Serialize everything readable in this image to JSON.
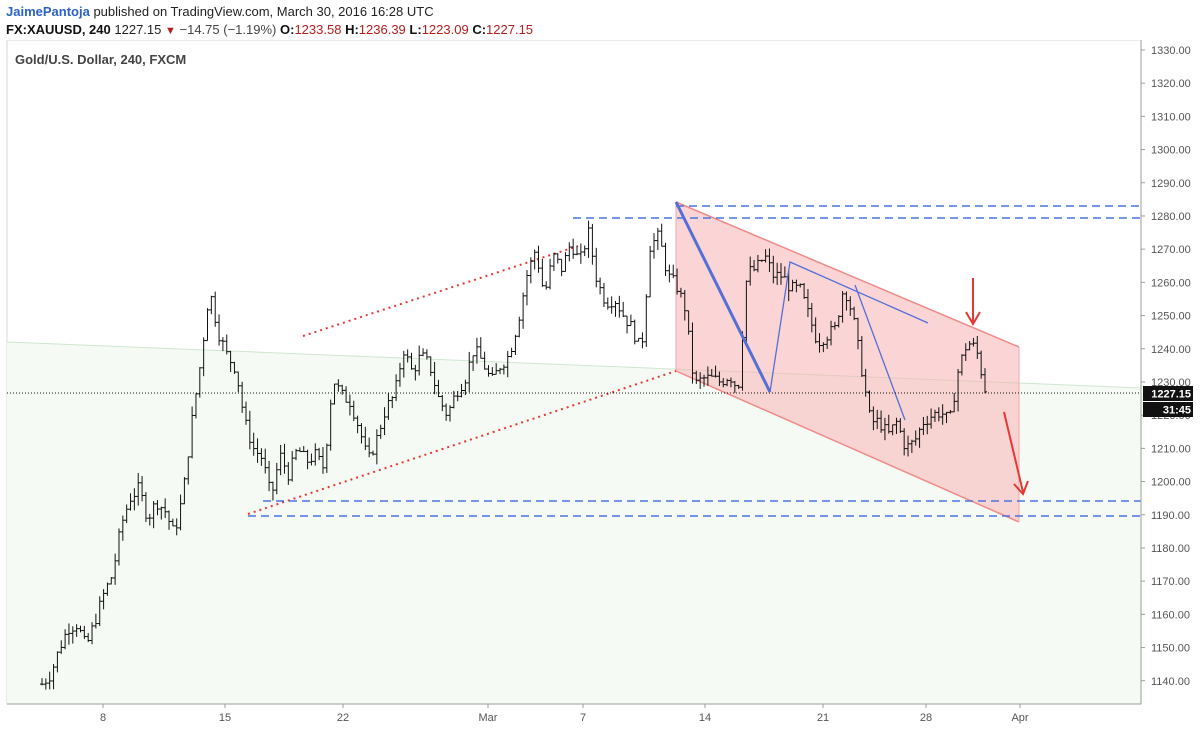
{
  "header": {
    "author": "JaimePantoja",
    "published_text": "published on TradingView.com, March 30, 2016 16:28 UTC",
    "symbol": "FX:XAUUSD, 240",
    "last_price": "1227.15",
    "change_text": "−14.75 (−1.19%)",
    "open_label": "O:",
    "open_value": "1233.58",
    "high_label": "H:",
    "high_value": "1236.39",
    "low_label": "L:",
    "low_value": "1223.09",
    "close_label": "C:",
    "close_value": "1227.15"
  },
  "chart_data": {
    "type": "candlestick",
    "title": "Gold/U.S. Dollar, 240, FXCM",
    "ylim": [
      1133,
      1333
    ],
    "y_ticks": [
      "1140.00",
      "1150.00",
      "1160.00",
      "1170.00",
      "1180.00",
      "1190.00",
      "1200.00",
      "1210.00",
      "1220.00",
      "1230.00",
      "1240.00",
      "1250.00",
      "1260.00",
      "1270.00",
      "1280.00",
      "1290.00",
      "1300.00",
      "1310.00",
      "1320.00",
      "1330.00"
    ],
    "x_ticks": [
      "8",
      "15",
      "22",
      "Mar",
      "7",
      "14",
      "21",
      "28",
      "Apr"
    ],
    "last_price_label": "1227.15",
    "countdown_label": "31:45",
    "grid": false,
    "price_path": [
      [
        0,
        1139
      ],
      [
        1,
        1142
      ],
      [
        2,
        1150
      ],
      [
        3,
        1156
      ],
      [
        4,
        1157
      ],
      [
        5,
        1150
      ],
      [
        6,
        1158
      ],
      [
        7,
        1166
      ],
      [
        8,
        1172
      ],
      [
        9,
        1187
      ],
      [
        10,
        1195
      ],
      [
        11,
        1198
      ],
      [
        12,
        1189
      ],
      [
        13,
        1194
      ],
      [
        14,
        1191
      ],
      [
        15,
        1184
      ],
      [
        16,
        1196
      ],
      [
        17,
        1218
      ],
      [
        18,
        1236
      ],
      [
        19,
        1258
      ],
      [
        20,
        1245
      ],
      [
        21,
        1238
      ],
      [
        22,
        1234
      ],
      [
        23,
        1218
      ],
      [
        24,
        1210
      ],
      [
        25,
        1207
      ],
      [
        26,
        1195
      ],
      [
        27,
        1208
      ],
      [
        28,
        1202
      ],
      [
        29,
        1210
      ],
      [
        30,
        1206
      ],
      [
        31,
        1208
      ],
      [
        32,
        1204
      ],
      [
        33,
        1231
      ],
      [
        34,
        1226
      ],
      [
        35,
        1224
      ],
      [
        36,
        1216
      ],
      [
        37,
        1206
      ],
      [
        38,
        1213
      ],
      [
        39,
        1222
      ],
      [
        40,
        1226
      ],
      [
        41,
        1240
      ],
      [
        42,
        1233
      ],
      [
        43,
        1238
      ],
      [
        44,
        1235
      ],
      [
        45,
        1225
      ],
      [
        46,
        1220
      ],
      [
        47,
        1227
      ],
      [
        48,
        1231
      ],
      [
        49,
        1240
      ],
      [
        50,
        1236
      ],
      [
        51,
        1230
      ],
      [
        52,
        1235
      ],
      [
        53,
        1238
      ],
      [
        54,
        1248
      ],
      [
        55,
        1262
      ],
      [
        56,
        1270
      ],
      [
        57,
        1256
      ],
      [
        58,
        1268
      ],
      [
        59,
        1264
      ],
      [
        60,
        1272
      ],
      [
        61,
        1266
      ],
      [
        62,
        1275
      ],
      [
        63,
        1260
      ],
      [
        64,
        1254
      ],
      [
        65,
        1255
      ],
      [
        66,
        1250
      ],
      [
        67,
        1246
      ],
      [
        68,
        1239
      ],
      [
        69,
        1271
      ],
      [
        70,
        1274
      ],
      [
        71,
        1262
      ],
      [
        72,
        1259
      ],
      [
        73,
        1252
      ],
      [
        74,
        1229
      ],
      [
        75,
        1231
      ],
      [
        76,
        1231
      ],
      [
        77,
        1230
      ],
      [
        78,
        1232
      ],
      [
        79,
        1228
      ],
      [
        80,
        1263
      ],
      [
        81,
        1264
      ],
      [
        82,
        1268
      ],
      [
        83,
        1262
      ],
      [
        84,
        1262
      ],
      [
        85,
        1258
      ],
      [
        86,
        1258
      ],
      [
        87,
        1250
      ],
      [
        88,
        1242
      ],
      [
        89,
        1244
      ],
      [
        90,
        1246
      ],
      [
        91,
        1259
      ],
      [
        92,
        1250
      ],
      [
        93,
        1234
      ],
      [
        94,
        1218
      ],
      [
        95,
        1218
      ],
      [
        96,
        1214
      ],
      [
        97,
        1218
      ],
      [
        98,
        1210
      ],
      [
        99,
        1212
      ],
      [
        100,
        1218
      ],
      [
        101,
        1220
      ],
      [
        102,
        1221
      ],
      [
        103,
        1218
      ],
      [
        104,
        1234
      ],
      [
        105,
        1242
      ],
      [
        106,
        1240
      ],
      [
        107,
        1228
      ]
    ]
  }
}
